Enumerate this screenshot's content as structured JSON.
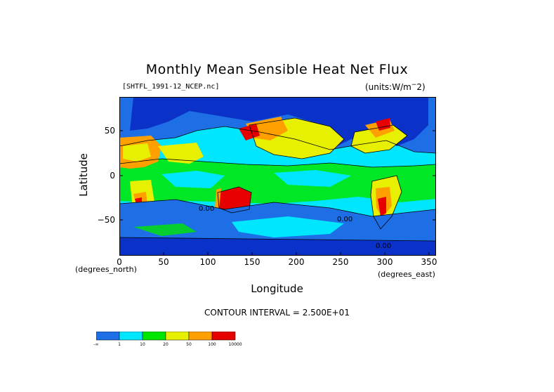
{
  "title": "Monthly Mean Sensible Heat Net Flux",
  "filename": "[SHTFL_1991-12_NCEP.nc]",
  "units": "(units:W/m^2)",
  "y_axis": {
    "title": "Latitude",
    "ticks": [
      "50",
      "0",
      "−50"
    ],
    "unit_label": "(degrees_north)"
  },
  "x_axis": {
    "title": "Longitude",
    "ticks": [
      "0",
      "50",
      "100",
      "150",
      "200",
      "250",
      "300",
      "350"
    ],
    "unit_label": "(degrees_east)"
  },
  "contour_interval": "CONTOUR INTERVAL = 2.500E+01",
  "contour_labels": [
    "0.00",
    "0.00",
    "0.00"
  ],
  "colorbar": {
    "colors": [
      "#1e6ee6",
      "#00e6ff",
      "#00e600",
      "#e6f000",
      "#ffa000",
      "#e60000"
    ],
    "labels": [
      "-∞",
      "1",
      "10",
      "20",
      "50",
      "100",
      "10000"
    ]
  },
  "map_colors": {
    "deep_blue": "#0a32c8",
    "blue": "#1e6ee6",
    "cyan": "#00e6ff",
    "green": "#00e600",
    "yellow": "#e6f000",
    "orange": "#ffa000",
    "red": "#e60000",
    "contour": "#000000"
  }
}
